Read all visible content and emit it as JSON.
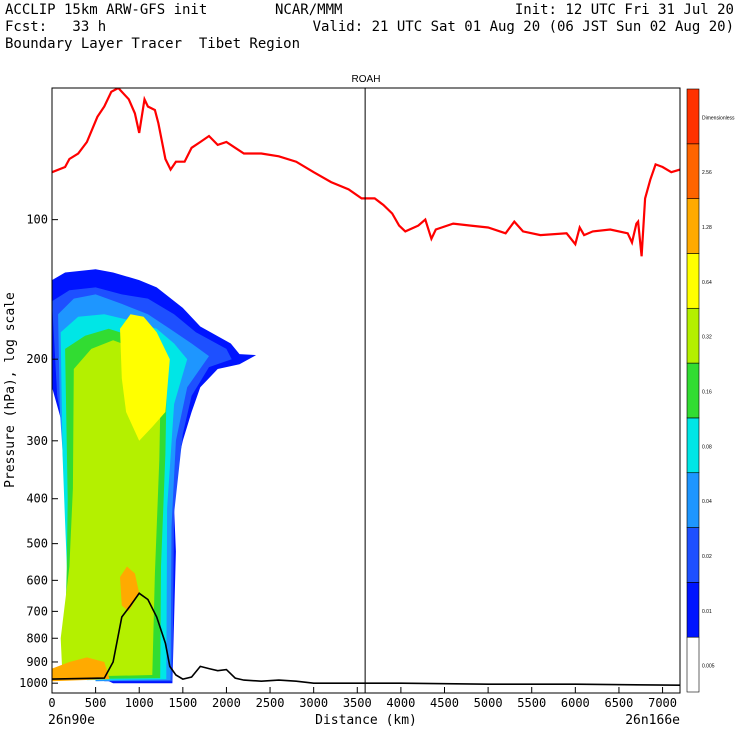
{
  "header": {
    "line1_left": "ACCLIP 15km ARW-GFS init",
    "line1_mid": "NCAR/MMM",
    "line1_right": "Init: 12 UTC Fri 31 Jul 20",
    "line2_left": "Fcst:   33 h",
    "line2_right": "Valid: 21 UTC Sat 01 Aug 20 (06 JST Sun 02 Aug 20)",
    "line3_left": "Boundary Layer Tracer  Tibet Region"
  },
  "chart_data": {
    "type": "heatmap",
    "title": "ROAH",
    "xlabel": "Distance (km)",
    "ylabel": "Pressure (hPa), log scale",
    "xlim": [
      0,
      7200
    ],
    "ylim": [
      1050,
      52
    ],
    "yscale": "log",
    "x_ticks": [
      0,
      500,
      1000,
      1500,
      2000,
      2500,
      3000,
      3500,
      4000,
      4500,
      5000,
      5500,
      6000,
      6500,
      7000
    ],
    "y_ticks": [
      100,
      200,
      300,
      400,
      500,
      600,
      700,
      800,
      900,
      1000
    ],
    "left_endpoint_label": "26n90e",
    "right_endpoint_label": "26n166e",
    "vertical_line_x": 3590,
    "colorbar": {
      "levels": [
        "0.005",
        "0.01",
        "0.02",
        "0.04",
        "0.08",
        "0.16",
        "0.32",
        "0.64",
        "1.28",
        "2.56",
        "Dimensionless"
      ],
      "colors": [
        "#ffffff",
        "#0014ff",
        "#1e50ff",
        "#1e96ff",
        "#00e6e6",
        "#32dc32",
        "#b4f000",
        "#ffff00",
        "#ffaa00",
        "#ff6400",
        "#ff3200"
      ]
    },
    "series": [
      {
        "name": "tropopause",
        "color": "#ff0000",
        "points": [
          [
            0,
            79
          ],
          [
            150,
            77
          ],
          [
            200,
            74
          ],
          [
            300,
            72
          ],
          [
            400,
            68
          ],
          [
            520,
            60
          ],
          [
            600,
            57
          ],
          [
            680,
            53
          ],
          [
            760,
            52
          ],
          [
            880,
            55
          ],
          [
            950,
            59
          ],
          [
            1000,
            65
          ],
          [
            1060,
            55
          ],
          [
            1100,
            57
          ],
          [
            1180,
            58
          ],
          [
            1220,
            62
          ],
          [
            1300,
            74
          ],
          [
            1360,
            78
          ],
          [
            1420,
            75
          ],
          [
            1520,
            75
          ],
          [
            1600,
            70
          ],
          [
            1700,
            68
          ],
          [
            1800,
            66
          ],
          [
            1900,
            69
          ],
          [
            2000,
            68
          ],
          [
            2100,
            70
          ],
          [
            2200,
            72
          ],
          [
            2400,
            72
          ],
          [
            2600,
            73
          ],
          [
            2800,
            75
          ],
          [
            3000,
            79
          ],
          [
            3200,
            83
          ],
          [
            3400,
            86
          ],
          [
            3550,
            90
          ],
          [
            3700,
            90
          ],
          [
            3800,
            93
          ],
          [
            3900,
            97
          ],
          [
            3980,
            103
          ],
          [
            4050,
            106
          ],
          [
            4200,
            103
          ],
          [
            4280,
            100
          ],
          [
            4350,
            110
          ],
          [
            4400,
            105
          ],
          [
            4600,
            102
          ],
          [
            4800,
            103
          ],
          [
            5000,
            104
          ],
          [
            5200,
            107
          ],
          [
            5300,
            101
          ],
          [
            5400,
            106
          ],
          [
            5600,
            108
          ],
          [
            5900,
            107
          ],
          [
            6000,
            113
          ],
          [
            6050,
            104
          ],
          [
            6100,
            108
          ],
          [
            6200,
            106
          ],
          [
            6400,
            105
          ],
          [
            6600,
            107
          ],
          [
            6650,
            112
          ],
          [
            6700,
            102
          ],
          [
            6720,
            101
          ],
          [
            6760,
            120
          ],
          [
            6800,
            90
          ],
          [
            6860,
            82
          ],
          [
            6920,
            76
          ],
          [
            7000,
            77
          ],
          [
            7100,
            79
          ],
          [
            7200,
            78
          ]
        ]
      },
      {
        "name": "terrain",
        "color": "#000000",
        "points": [
          [
            0,
            980
          ],
          [
            600,
            975
          ],
          [
            700,
            900
          ],
          [
            800,
            720
          ],
          [
            900,
            680
          ],
          [
            1000,
            640
          ],
          [
            1100,
            660
          ],
          [
            1200,
            720
          ],
          [
            1300,
            820
          ],
          [
            1350,
            920
          ],
          [
            1420,
            960
          ],
          [
            1500,
            980
          ],
          [
            1600,
            970
          ],
          [
            1700,
            920
          ],
          [
            1800,
            930
          ],
          [
            1900,
            940
          ],
          [
            2000,
            935
          ],
          [
            2100,
            975
          ],
          [
            2200,
            985
          ],
          [
            2400,
            990
          ],
          [
            2600,
            985
          ],
          [
            2800,
            990
          ],
          [
            3000,
            1000
          ],
          [
            3500,
            1000
          ],
          [
            4000,
            1000
          ],
          [
            5000,
            1005
          ],
          [
            6000,
            1005
          ],
          [
            7200,
            1010
          ]
        ]
      }
    ]
  }
}
